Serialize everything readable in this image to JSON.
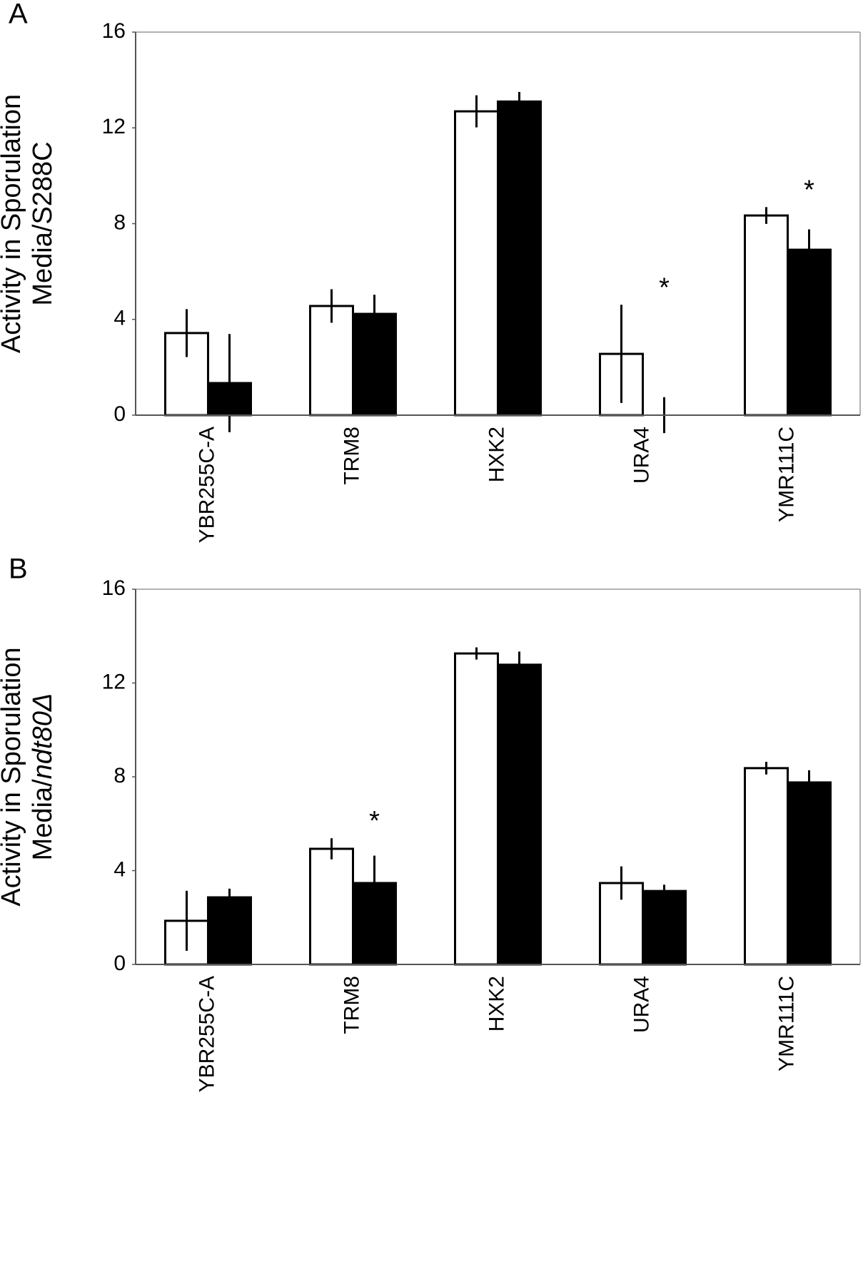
{
  "chart_data": [
    {
      "type": "bar",
      "panel": "A",
      "y_label_lines": [
        "Activity in Sporulation",
        "Media/S288C"
      ],
      "categories": [
        "YBR255C-A",
        "TRM8",
        "HXK2",
        "URA4",
        "YMR111C"
      ],
      "series": [
        {
          "color": "#ffffff",
          "values": [
            3.43,
            4.56,
            12.69,
            2.56,
            8.34
          ],
          "errors": [
            1.0,
            0.7,
            0.67,
            2.05,
            0.35
          ]
        },
        {
          "color": "#000000",
          "values": [
            1.34,
            4.23,
            13.1,
            0,
            6.91
          ],
          "errors": [
            2.05,
            0.8,
            0.4,
            0.75,
            0.85
          ]
        }
      ],
      "annotations": [
        {
          "text": "*",
          "category": "URA4"
        },
        {
          "text": "*",
          "category": "YMR111C"
        }
      ],
      "ylim": [
        0,
        16
      ],
      "yticks": [
        0,
        4,
        8,
        12,
        16
      ],
      "grid": false
    },
    {
      "type": "bar",
      "panel": "B",
      "y_label_lines": [
        "Activity in Sporulation",
        "Media/"
      ],
      "y_label_italic": "ndt80Δ",
      "categories": [
        "YBR255C-A",
        "TRM8",
        "HXK2",
        "URA4",
        "YMR111C"
      ],
      "series": [
        {
          "color": "#ffffff",
          "values": [
            1.86,
            4.93,
            13.26,
            3.47,
            8.37
          ],
          "errors": [
            1.28,
            0.45,
            0.26,
            0.71,
            0.27
          ]
        },
        {
          "color": "#000000",
          "values": [
            2.86,
            3.47,
            12.78,
            3.13,
            7.76
          ],
          "errors": [
            0.37,
            1.17,
            0.56,
            0.27,
            0.52
          ]
        }
      ],
      "annotations": [
        {
          "text": "*",
          "category": "TRM8"
        }
      ],
      "ylim": [
        0,
        16
      ],
      "yticks": [
        0,
        4,
        8,
        12,
        16
      ],
      "grid": false
    }
  ]
}
